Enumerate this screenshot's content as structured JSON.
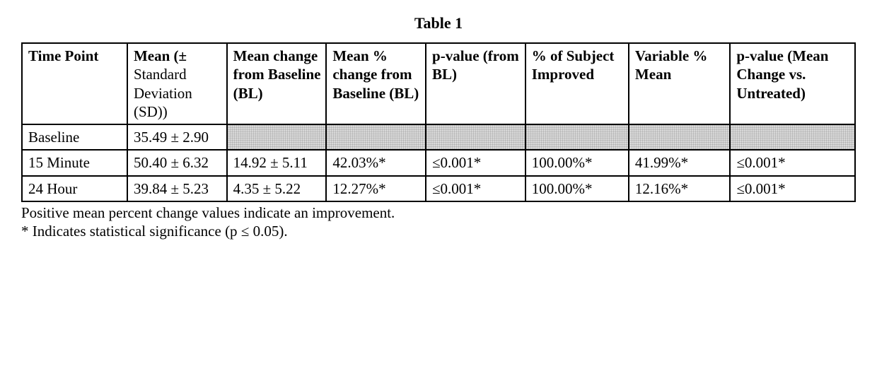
{
  "title": "Table 1",
  "columns": [
    {
      "bold": "Time Point",
      "rest": ""
    },
    {
      "bold": "Mean (±",
      "rest": " Standard Deviation (SD))"
    },
    {
      "bold": "Mean change from Baseline (BL)",
      "rest": ""
    },
    {
      "bold": "Mean % change from Baseline (BL)",
      "rest": ""
    },
    {
      "bold": "p-value (from BL)",
      "rest": ""
    },
    {
      "bold": "% of Subject Improved",
      "rest": ""
    },
    {
      "bold": "Variable % Mean",
      "rest": ""
    },
    {
      "bold": "p-value (Mean Change vs. Untreated)",
      "rest": ""
    }
  ],
  "rows": [
    {
      "cells": [
        {
          "text": "Baseline",
          "shaded": false
        },
        {
          "text": "35.49 ± 2.90",
          "shaded": false
        },
        {
          "text": "",
          "shaded": true
        },
        {
          "text": "",
          "shaded": true
        },
        {
          "text": "",
          "shaded": true
        },
        {
          "text": "",
          "shaded": true
        },
        {
          "text": "",
          "shaded": true
        },
        {
          "text": "",
          "shaded": true
        }
      ]
    },
    {
      "cells": [
        {
          "text": "15 Minute",
          "shaded": false
        },
        {
          "text": "50.40 ± 6.32",
          "shaded": false
        },
        {
          "text": "14.92 ± 5.11",
          "shaded": false
        },
        {
          "text": "42.03%*",
          "shaded": false
        },
        {
          "text": "≤0.001*",
          "shaded": false
        },
        {
          "text": "100.00%*",
          "shaded": false
        },
        {
          "text": "41.99%*",
          "shaded": false
        },
        {
          "text": "≤0.001*",
          "shaded": false
        }
      ]
    },
    {
      "cells": [
        {
          "text": "24 Hour",
          "shaded": false
        },
        {
          "text": "39.84 ± 5.23",
          "shaded": false
        },
        {
          "text": "4.35 ± 5.22",
          "shaded": false
        },
        {
          "text": "12.27%*",
          "shaded": false
        },
        {
          "text": "≤0.001*",
          "shaded": false
        },
        {
          "text": "100.00%*",
          "shaded": false
        },
        {
          "text": "12.16%*",
          "shaded": false
        },
        {
          "text": "≤0.001*",
          "shaded": false
        }
      ]
    }
  ],
  "footnotes": [
    "Positive mean percent change values indicate an improvement.",
    "* Indicates statistical significance (p ≤ 0.05)."
  ],
  "style": {
    "border_color": "#000000",
    "shaded_bg": "#d9d9d9",
    "font_family": "Times New Roman",
    "title_fontsize_pt": 16,
    "body_fontsize_pt": 16,
    "col_widths_pct": [
      10.8,
      10.2,
      10.2,
      10.2,
      10.2,
      10.6,
      10.4,
      12.8
    ]
  }
}
